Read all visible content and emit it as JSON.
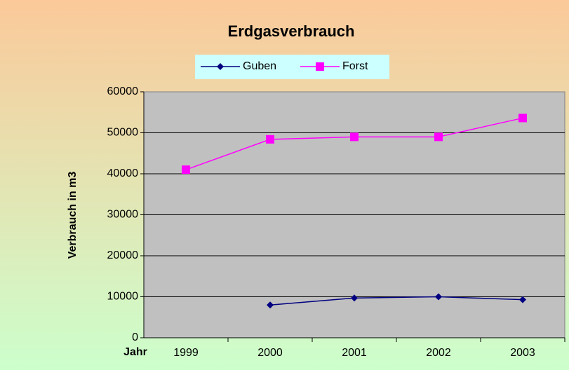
{
  "chart_data": {
    "type": "line",
    "title": "Erdgasverbrauch",
    "x_label": "Jahr",
    "y_label": "Verbrauch in m3",
    "categories": [
      "1999",
      "2000",
      "2001",
      "2002",
      "2003"
    ],
    "series": [
      {
        "name": "Guben",
        "color": "#000080",
        "marker": "diamond",
        "values": [
          null,
          8000,
          9700,
          10000,
          9300
        ]
      },
      {
        "name": "Forst",
        "color": "#ff00ff",
        "marker": "square",
        "values": [
          41000,
          48400,
          49000,
          49000,
          53600
        ]
      }
    ],
    "ylim": [
      0,
      60000
    ],
    "yticks": [
      0,
      10000,
      20000,
      30000,
      40000,
      50000,
      60000
    ],
    "grid": true
  }
}
